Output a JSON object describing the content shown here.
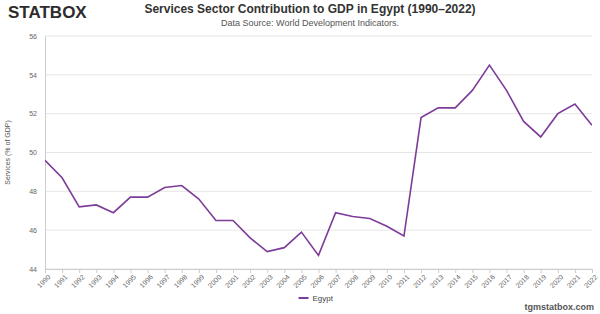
{
  "chart_data": {
    "type": "line",
    "title": "Services Sector Contribution to GDP in Egypt (1990–2022)",
    "subtitle": "Data Source: World Development Indicators.",
    "y_label": "Services (% of GDP)",
    "annotations": [
      "STATBOX",
      "tgmstatbox.com"
    ],
    "x": [
      1990,
      1991,
      1992,
      1993,
      1994,
      1995,
      1996,
      1997,
      1998,
      1999,
      2000,
      2001,
      2002,
      2003,
      2004,
      2005,
      2006,
      2007,
      2008,
      2009,
      2010,
      2011,
      2012,
      2013,
      2014,
      2015,
      2016,
      2017,
      2018,
      2019,
      2020,
      2021,
      2022
    ],
    "series": [
      {
        "name": "Egypt",
        "color": "#7d3c98",
        "values": [
          49.6,
          48.7,
          47.2,
          47.3,
          46.9,
          47.7,
          47.7,
          48.2,
          48.3,
          47.6,
          46.5,
          46.5,
          45.6,
          44.9,
          45.1,
          45.9,
          44.7,
          46.9,
          46.7,
          46.6,
          46.2,
          45.7,
          51.8,
          52.3,
          52.3,
          53.2,
          54.5,
          53.2,
          51.6,
          50.8,
          52.0,
          52.5,
          51.4
        ]
      }
    ],
    "xlim": [
      1990,
      2022
    ],
    "xticks": [
      1990,
      1991,
      1992,
      1993,
      1994,
      1995,
      1996,
      1997,
      1998,
      1999,
      2000,
      2001,
      2002,
      2003,
      2004,
      2005,
      2006,
      2007,
      2008,
      2009,
      2010,
      2011,
      2012,
      2013,
      2014,
      2015,
      2016,
      2017,
      2018,
      2019,
      2020,
      2021,
      2022
    ],
    "ylim": [
      44,
      56
    ],
    "yticks": [
      44,
      46,
      48,
      50,
      52,
      54,
      56
    ],
    "grid": true,
    "legend": "bottom"
  }
}
